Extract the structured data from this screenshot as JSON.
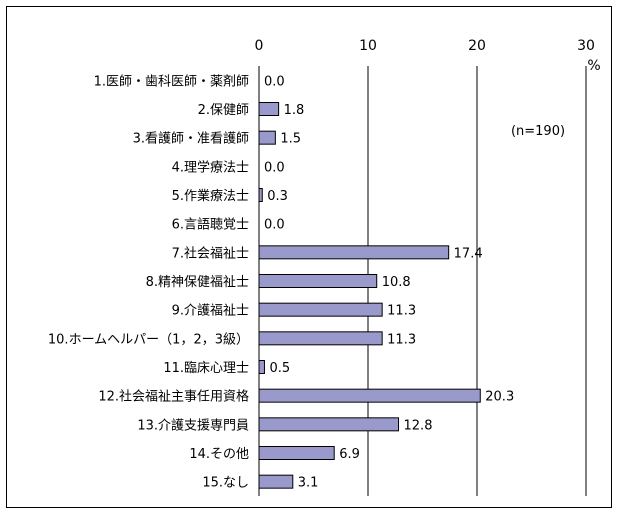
{
  "chart_data": {
    "type": "bar",
    "orientation": "horizontal",
    "categories": [
      "1.医師・歯科医師・薬剤師",
      "2.保健師",
      "3.看護師・准看護師",
      "4.理学療法士",
      "5.作業療法士",
      "6.言語聴覚士",
      "7.社会福祉士",
      "8.精神保健福祉士",
      "9.介護福祉士",
      "10.ホームヘルパー（1，2，3級）",
      "11.臨床心理士",
      "12.社会福祉主事任用資格",
      "13.介護支援専門員",
      "14.その他",
      "15.なし"
    ],
    "values": [
      0.0,
      1.8,
      1.5,
      0.0,
      0.3,
      0.0,
      17.4,
      10.8,
      11.3,
      11.3,
      0.5,
      20.3,
      12.8,
      6.9,
      3.1
    ],
    "value_labels": [
      "0.0",
      "1.8",
      "1.5",
      "0.0",
      "0.3",
      "0.0",
      "17.4",
      "10.8",
      "11.3",
      "11.3",
      "0.5",
      "20.3",
      "12.8",
      "6.9",
      "3.1"
    ],
    "xlim": [
      0,
      30
    ],
    "xticks": [
      "0",
      "10",
      "20",
      "30"
    ],
    "unit": "%",
    "annotation": "(n=190)",
    "bar_color": "#9999cc",
    "grid": true
  }
}
